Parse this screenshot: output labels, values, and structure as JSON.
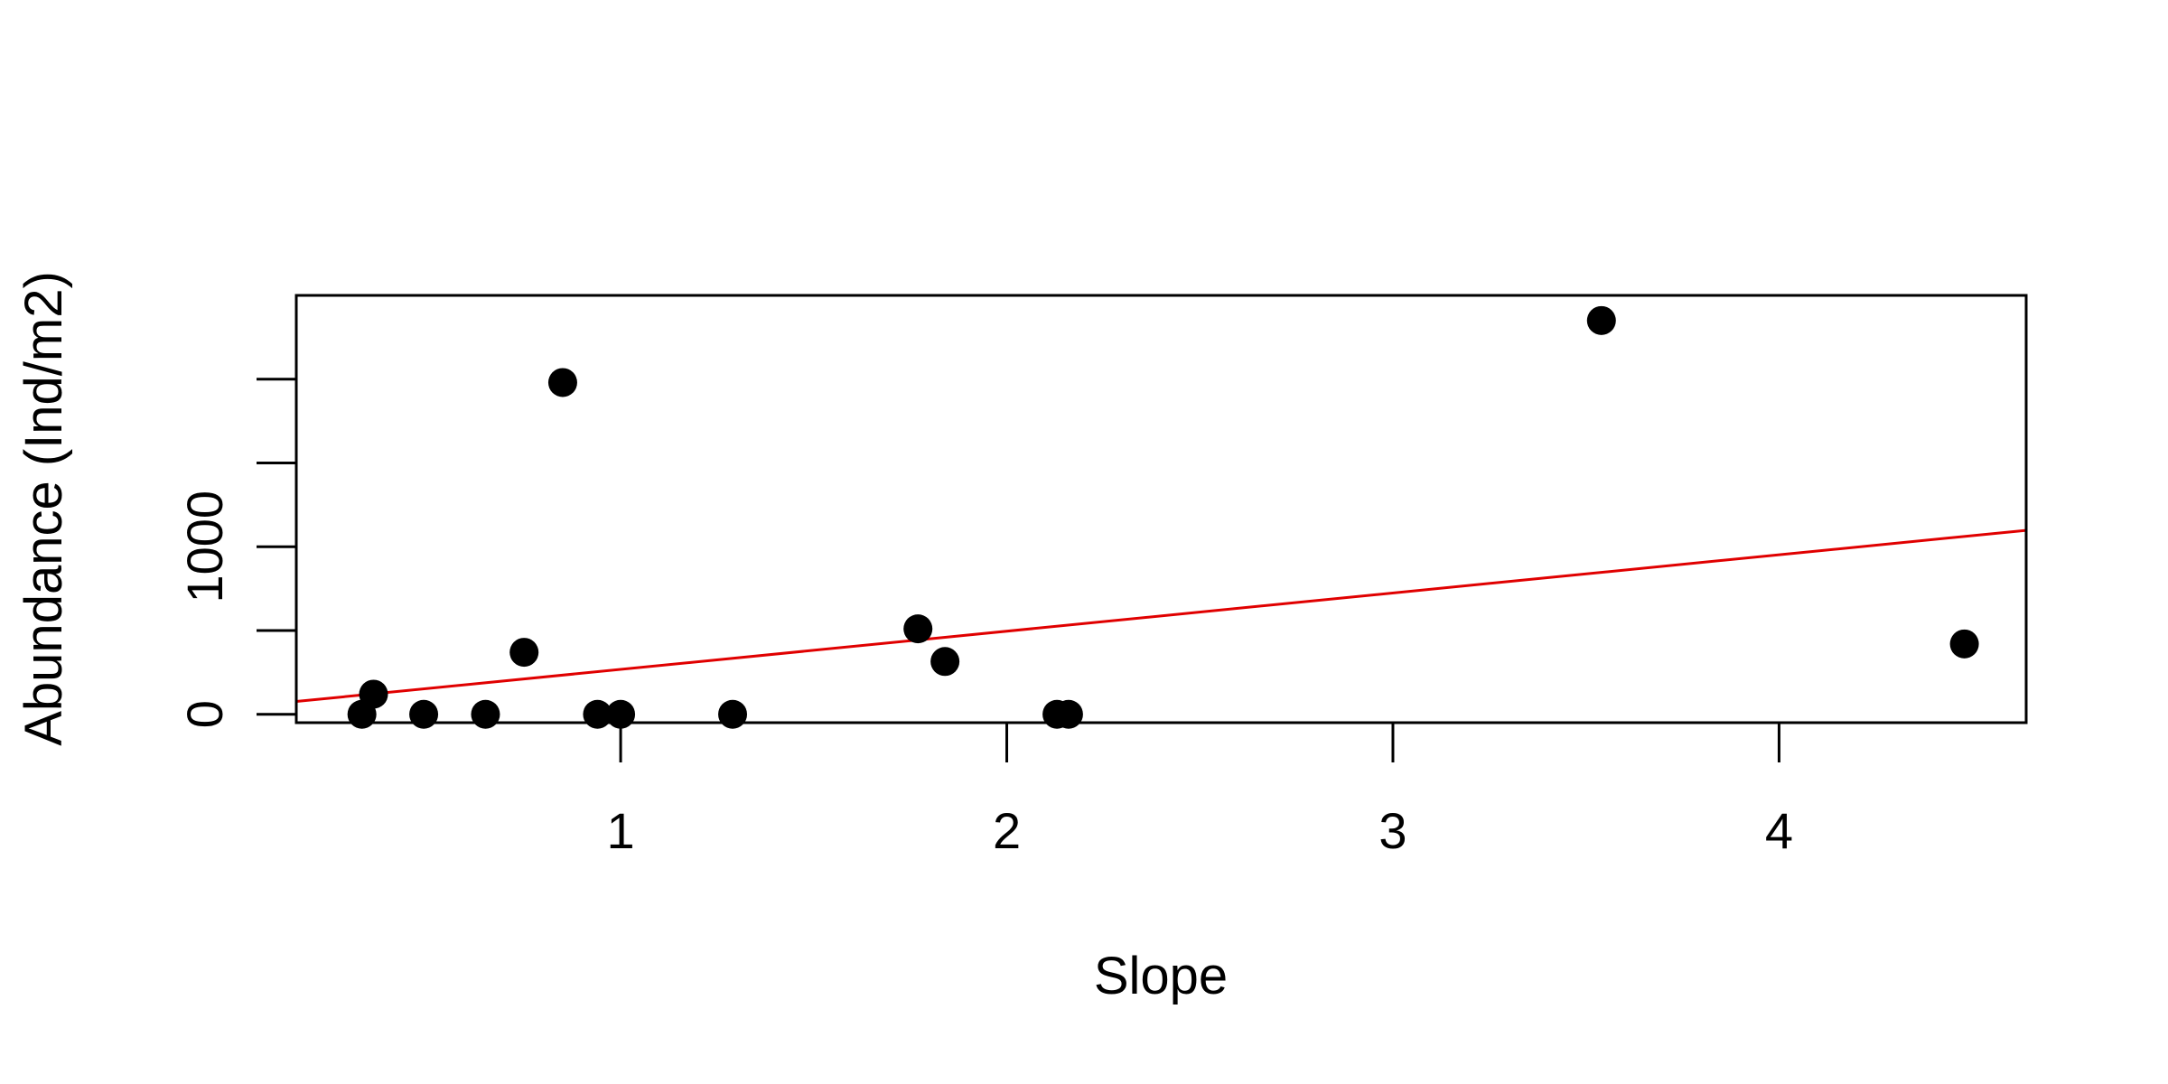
{
  "chart_data": {
    "type": "scatter",
    "title": "",
    "xlabel": "Slope",
    "ylabel": "Abundance (Ind/m2)",
    "xlim": [
      0.16,
      4.64
    ],
    "ylim": [
      -50,
      2500
    ],
    "x_ticks": [
      1,
      2,
      3,
      4
    ],
    "x_tick_labels": [
      "1",
      "2",
      "3",
      "4"
    ],
    "y_ticks": [
      0,
      500,
      1000,
      1500,
      2000
    ],
    "y_tick_labels": [
      "0",
      "",
      "1000",
      "",
      ""
    ],
    "grid": false,
    "legend": "none",
    "colors": {
      "points": "#000000",
      "fit_line": "#e00000",
      "axes": "#000000"
    },
    "points": [
      {
        "x": 0.33,
        "y": 0
      },
      {
        "x": 0.36,
        "y": 120
      },
      {
        "x": 0.49,
        "y": 0
      },
      {
        "x": 0.65,
        "y": 0
      },
      {
        "x": 0.75,
        "y": 370
      },
      {
        "x": 0.85,
        "y": 1980
      },
      {
        "x": 0.94,
        "y": 0
      },
      {
        "x": 1.0,
        "y": 0
      },
      {
        "x": 1.29,
        "y": 0
      },
      {
        "x": 1.77,
        "y": 510
      },
      {
        "x": 1.84,
        "y": 315
      },
      {
        "x": 2.13,
        "y": 0
      },
      {
        "x": 2.16,
        "y": 0
      },
      {
        "x": 3.54,
        "y": 2350
      },
      {
        "x": 4.48,
        "y": 420
      }
    ],
    "fit_line": {
      "type": "linear",
      "intercept": 40,
      "slope": 228
    }
  }
}
